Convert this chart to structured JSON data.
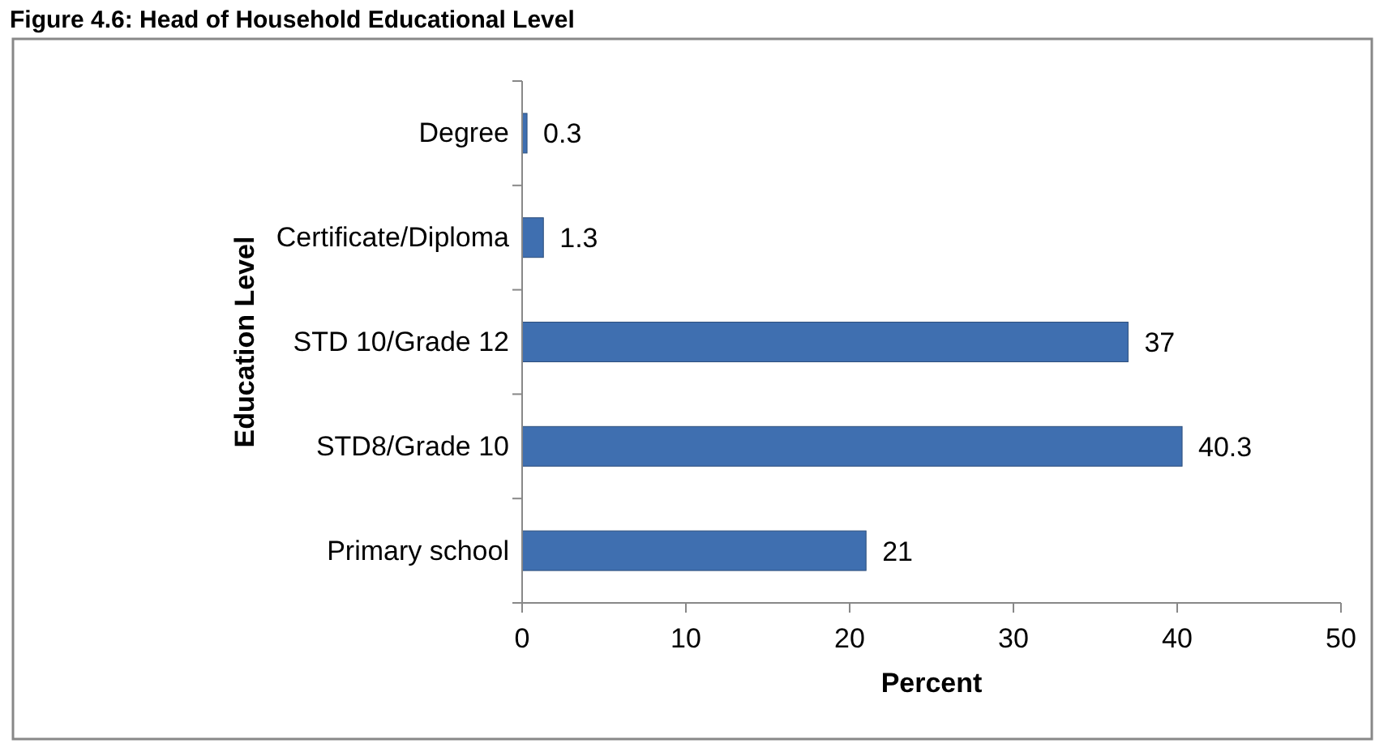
{
  "chart_data": {
    "type": "bar",
    "orientation": "horizontal",
    "title": "Figure 4.6: Head of Household Educational Level",
    "xlabel": "Percent",
    "ylabel": "Education Level",
    "categories": [
      "Degree",
      "Certificate/Diploma",
      "STD 10/Grade 12",
      "STD8/Grade 10",
      "Primary school"
    ],
    "values": [
      0.3,
      1.3,
      37,
      40.3,
      21
    ],
    "color": "#3f6fb0",
    "data_labels": true,
    "xlim": [
      0,
      50
    ],
    "xticks": [
      0,
      10,
      20,
      30,
      40,
      50
    ],
    "grid": false
  }
}
